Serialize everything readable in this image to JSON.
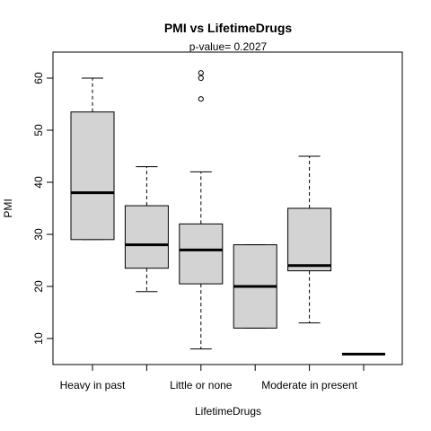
{
  "chart_data": {
    "type": "boxplot",
    "title": "PMI  vs  LifetimeDrugs",
    "subtitle": "p-value= 0.2027",
    "xlabel": "LifetimeDrugs",
    "ylabel": "PMI",
    "ylim": [
      5,
      65
    ],
    "yticks": [
      10,
      20,
      30,
      40,
      50,
      60
    ],
    "grid": false,
    "categories": [
      "Heavy in past",
      "",
      "Little or none",
      "",
      "Moderate in present",
      ""
    ],
    "boxes": [
      {
        "min": 29,
        "q1": 29,
        "median": 38,
        "q3": 53.5,
        "max": 60,
        "outliers": []
      },
      {
        "min": 19,
        "q1": 23.5,
        "median": 28,
        "q3": 35.5,
        "max": 43,
        "outliers": []
      },
      {
        "min": 8,
        "q1": 20.5,
        "median": 27,
        "q3": 32,
        "max": 42,
        "outliers": [
          56,
          60,
          61
        ]
      },
      {
        "min": 12,
        "q1": 12,
        "median": 20,
        "q3": 28,
        "max": 28,
        "outliers": []
      },
      {
        "min": 13,
        "q1": 23,
        "median": 24,
        "q3": 35,
        "max": 45,
        "outliers": []
      },
      {
        "min": 7,
        "q1": 7,
        "median": 7,
        "q3": 7,
        "max": 7,
        "outliers": []
      }
    ]
  }
}
